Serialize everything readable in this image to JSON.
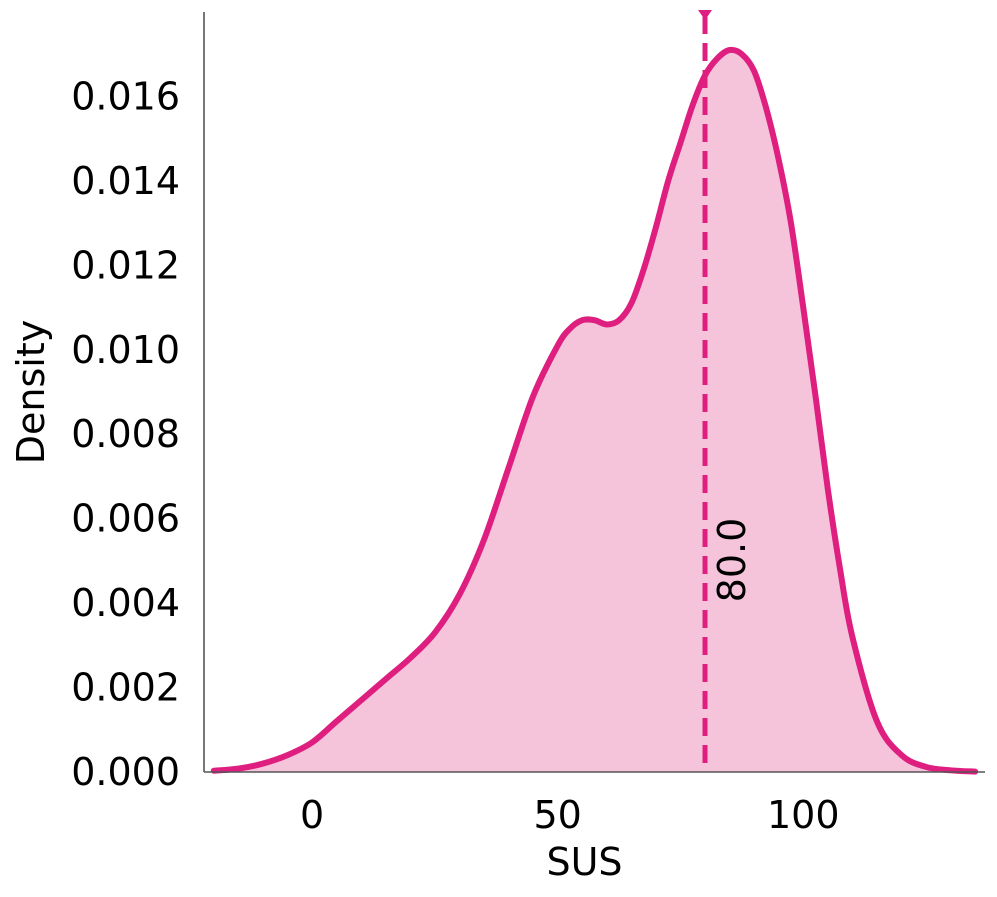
{
  "chart_data": {
    "type": "area",
    "xlabel": "SUS",
    "ylabel": "Density",
    "xlim": [
      -22,
      137
    ],
    "ylim": [
      0,
      0.018
    ],
    "x_ticks": [
      0,
      50,
      100
    ],
    "y_ticks": [
      0.0,
      0.002,
      0.004,
      0.006,
      0.008,
      0.01,
      0.012,
      0.014,
      0.016
    ],
    "x_tick_labels": [
      "0",
      "50",
      "100"
    ],
    "y_tick_labels": [
      "0.000",
      "0.002",
      "0.004",
      "0.006",
      "0.008",
      "0.010",
      "0.012",
      "0.014",
      "0.016"
    ],
    "grid": false,
    "series": [
      {
        "color": "#de1f80",
        "fill": "#f5c4da",
        "x": [
          -20,
          -15,
          -10,
          -5,
          0,
          5,
          10,
          15,
          20,
          25,
          30,
          35,
          40,
          45,
          50,
          52.5,
          55,
          57.5,
          60,
          62.5,
          65,
          67.5,
          70,
          72.5,
          75,
          77.5,
          80,
          82.5,
          85,
          87.5,
          90,
          92.5,
          95,
          97.5,
          100,
          102.5,
          105,
          107.5,
          110,
          115,
          120,
          125,
          130,
          135
        ],
        "y": [
          3e-05,
          8e-05,
          0.0002,
          0.0004,
          0.0007,
          0.0012,
          0.0017,
          0.0022,
          0.0027,
          0.0033,
          0.0042,
          0.0055,
          0.0072,
          0.0089,
          0.0101,
          0.0105,
          0.0107,
          0.0107,
          0.0106,
          0.0107,
          0.0111,
          0.0119,
          0.0129,
          0.014,
          0.0149,
          0.0158,
          0.0165,
          0.0169,
          0.0171,
          0.017,
          0.0166,
          0.0157,
          0.0145,
          0.013,
          0.011,
          0.0089,
          0.0067,
          0.0048,
          0.0032,
          0.0012,
          0.0004,
          0.00012,
          4e-05,
          1e-05
        ]
      }
    ],
    "reference_line": {
      "x": 80.0,
      "label": "80.0",
      "style": "dashed",
      "color": "#de1f80"
    }
  }
}
